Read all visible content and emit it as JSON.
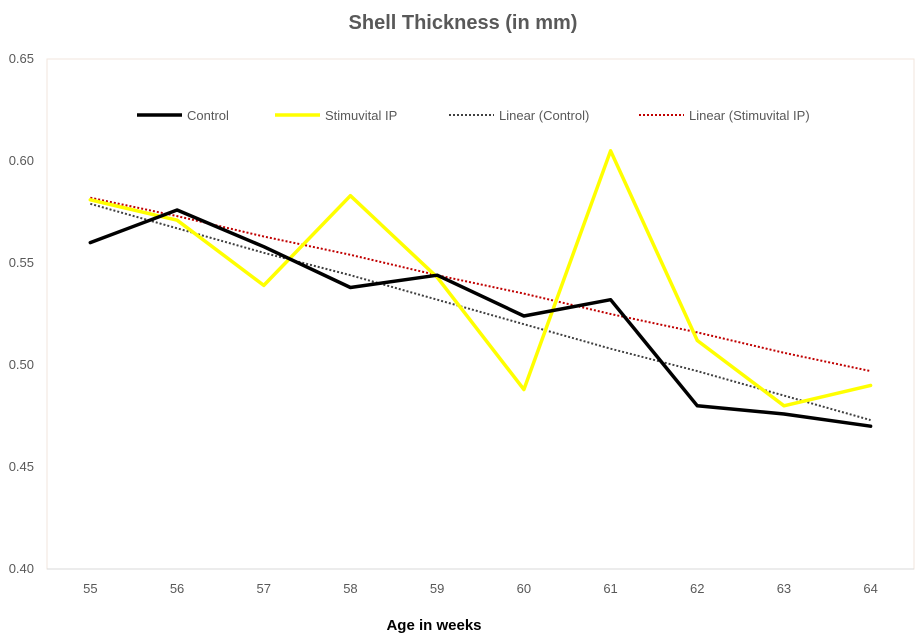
{
  "chart_data": {
    "type": "line",
    "title": "Shell Thickness (in mm)",
    "xlabel": "Age in weeks",
    "ylabel": "",
    "categories": [
      "55",
      "56",
      "57",
      "58",
      "59",
      "60",
      "61",
      "62",
      "63",
      "64"
    ],
    "ylim": [
      0.4,
      0.65
    ],
    "yticks": [
      "0.40",
      "0.45",
      "0.50",
      "0.55",
      "0.60",
      "0.65"
    ],
    "grid": false,
    "legend_position": "top",
    "series": [
      {
        "name": "Control",
        "style": "solid",
        "color": "#000000",
        "values": [
          0.56,
          0.576,
          0.558,
          0.538,
          0.544,
          0.524,
          0.532,
          0.48,
          0.476,
          0.47
        ]
      },
      {
        "name": "Stimuvital IP",
        "style": "solid",
        "color": "#FFFF00",
        "values": [
          0.581,
          0.571,
          0.539,
          0.583,
          0.543,
          0.488,
          0.605,
          0.512,
          0.48,
          0.49
        ]
      },
      {
        "name": "Linear (Control)",
        "style": "dotted",
        "color": "#404040",
        "values": [
          0.579,
          0.567,
          0.555,
          0.544,
          0.532,
          0.52,
          0.508,
          0.497,
          0.485,
          0.473
        ]
      },
      {
        "name": "Linear (Stimuvital IP)",
        "style": "dotted",
        "color": "#C00000",
        "values": [
          0.582,
          0.573,
          0.563,
          0.554,
          0.544,
          0.535,
          0.525,
          0.516,
          0.506,
          0.497
        ]
      }
    ]
  }
}
